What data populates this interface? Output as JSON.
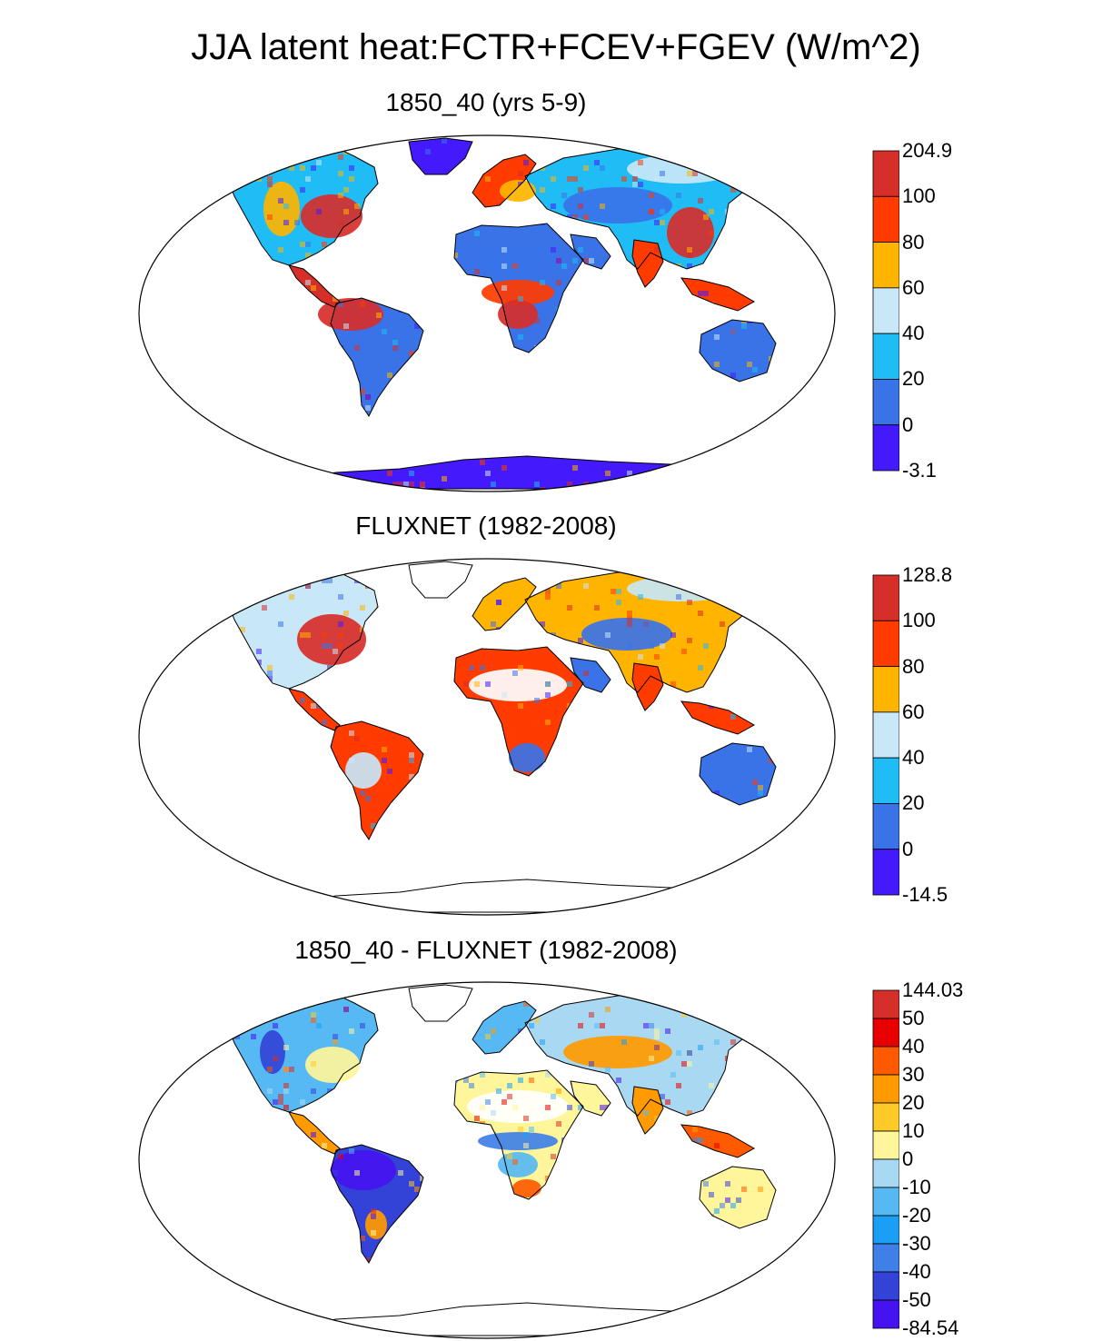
{
  "main_title": "JJA latent heat:FCTR+FCEV+FGEV (W/m^2)",
  "colors": {
    "d_red": "#d62e29",
    "red": "#ff3b00",
    "orange": "#ffb400",
    "pale_blue": "#c8e7f7",
    "cyan": "#1fbcf5",
    "blue": "#3a73e8",
    "violet": "#4419fb",
    "red_diff": "#e80000",
    "orange_red_diff": "#ff5a00",
    "orange_diff": "#ff9a00",
    "yellow_orange_diff": "#ffc928",
    "cream_diff": "#fff59a",
    "light_blue_diff": "#a9d9f2",
    "sky_diff": "#57b9f3",
    "azure_diff": "#1a9ff5",
    "mid_blue_diff": "#3f7fe8",
    "dark_blue_diff": "#3343d8",
    "violet_diff": "#4513f0"
  },
  "chart_data": [
    {
      "type": "heatmap",
      "panel": "model",
      "title": "1850_40 (yrs 5-9)",
      "colorbar_labels": [
        "204.9",
        "100",
        "80",
        "60",
        "40",
        "20",
        "0",
        "-3.1"
      ],
      "colorbar_range": [
        -3.1,
        204.9
      ],
      "colorbar_colors": [
        "d_red",
        "red",
        "orange",
        "pale_blue",
        "cyan",
        "blue",
        "violet"
      ]
    },
    {
      "type": "heatmap",
      "panel": "observation",
      "title": "FLUXNET (1982-2008)",
      "colorbar_labels": [
        "128.8",
        "100",
        "80",
        "60",
        "40",
        "20",
        "0",
        "-14.5"
      ],
      "colorbar_range": [
        -14.5,
        128.8
      ],
      "colorbar_colors": [
        "d_red",
        "red",
        "orange",
        "pale_blue",
        "cyan",
        "blue",
        "violet"
      ]
    },
    {
      "type": "heatmap",
      "panel": "difference",
      "title": "1850_40 - FLUXNET (1982-2008)",
      "colorbar_labels": [
        "144.03",
        "50",
        "40",
        "30",
        "20",
        "10",
        "0",
        "-10",
        "-20",
        "-30",
        "-40",
        "-50",
        "-84.54"
      ],
      "colorbar_range": [
        -84.54,
        144.03
      ],
      "colorbar_colors": [
        "d_red",
        "red_diff",
        "orange_red_diff",
        "orange_diff",
        "yellow_orange_diff",
        "cream_diff",
        "light_blue_diff",
        "sky_diff",
        "azure_diff",
        "mid_blue_diff",
        "dark_blue_diff",
        "violet_diff"
      ]
    }
  ]
}
